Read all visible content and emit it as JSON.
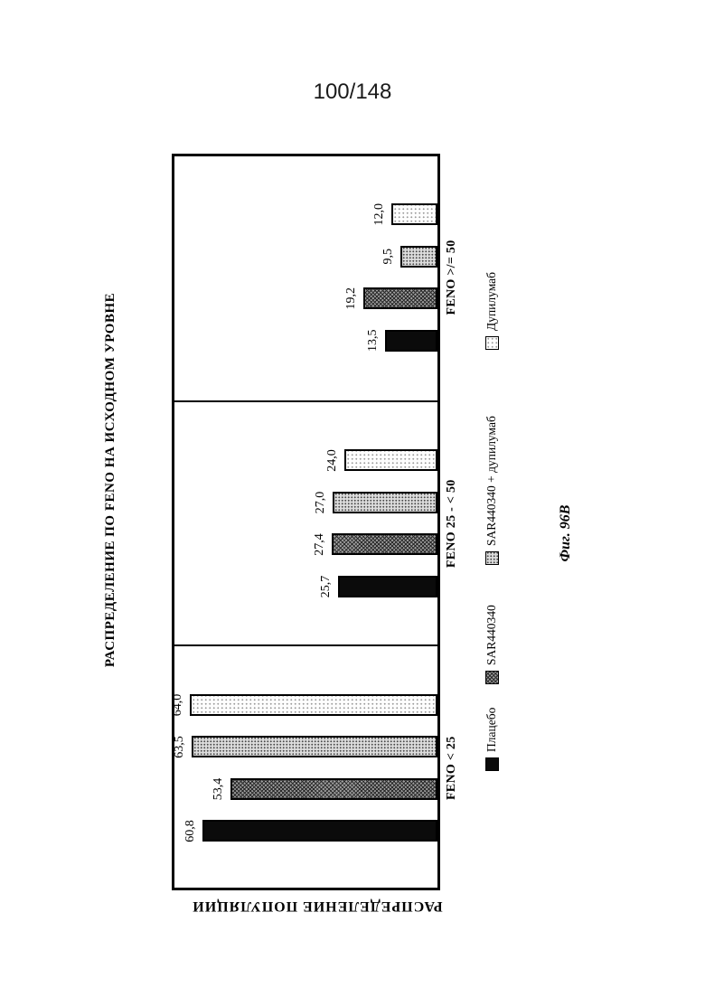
{
  "page": {
    "sheet_number": "100/148",
    "figure_caption": "Фиг. 96В"
  },
  "chart_data": {
    "type": "bar",
    "title": "РАСПРЕДЕЛЕНИЕ ПО FENO НА ИСХОДНОМ УРОВНЕ",
    "value_axis_label": "РАСПРЕДЕЛЕНИЕ ПОПУЛЯЦИИ",
    "categories": [
      "FENO < 25",
      "FENO 25 - < 50",
      "FENO >/= 50"
    ],
    "series": [
      {
        "name": "Плацебо",
        "pattern": "solid-black",
        "values": [
          60.8,
          25.7,
          13.5
        ],
        "value_labels": [
          "60,8",
          "25,7",
          "13,5"
        ]
      },
      {
        "name": "SAR440340",
        "pattern": "dark-crosshatch",
        "values": [
          53.4,
          27.4,
          19.2
        ],
        "value_labels": [
          "53,4",
          "27,4",
          "19,2"
        ]
      },
      {
        "name": "SAR440340 + дупилумаб",
        "pattern": "medium-dots",
        "values": [
          63.5,
          27.0,
          9.5
        ],
        "value_labels": [
          "63,5",
          "27,0",
          "9,5"
        ]
      },
      {
        "name": "Дупилумаб",
        "pattern": "light-dots",
        "values": [
          64.0,
          24.0,
          12.0
        ],
        "value_labels": [
          "64,0",
          "24,0",
          "12,0"
        ]
      }
    ],
    "value_axis_range": [
      0,
      70
    ],
    "gridlines": false,
    "bar_value_labels_shown": true,
    "legend_position": "bottom",
    "orientation": "landscape chart rotated 90 degrees counterclockwise on portrait page",
    "colors": {
      "ink": "#000000",
      "background": "#ffffff",
      "placebo_fill": "#0b0b0b",
      "sar440340_fill": "#a0a0a0",
      "sar440340_dupilumab_fill": "#c8c8c8",
      "dupilumab_fill": "#e8e8e8"
    }
  }
}
